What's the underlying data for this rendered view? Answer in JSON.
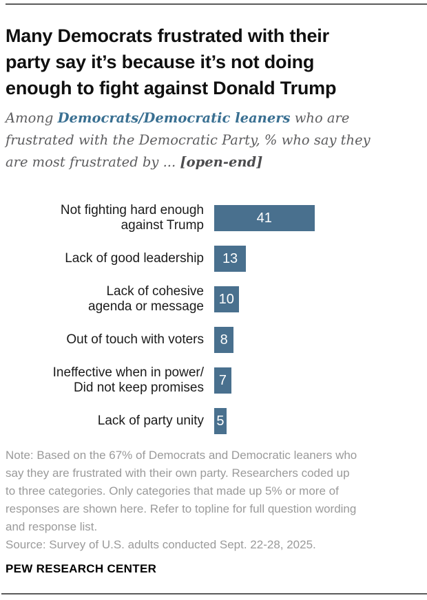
{
  "page": {
    "title_lines": [
      "Many Democrats frustrated with their",
      "party say it’s because it’s not doing",
      "enough to fight against Donald Trump"
    ]
  },
  "subtitle": {
    "lines": [
      {
        "segments": [
          {
            "text": "Among ",
            "style": "normal"
          },
          {
            "text": "Democrats/Democratic leaners",
            "style": "bold-blue"
          },
          {
            "text": " who are",
            "style": "normal"
          }
        ]
      },
      {
        "segments": [
          {
            "text": "frustrated with the Democratic Party, % who say they",
            "style": "normal"
          }
        ]
      },
      {
        "segments": [
          {
            "text": "are most frustrated by ... ",
            "style": "normal"
          },
          {
            "text": "[open-end]",
            "style": "bold"
          }
        ]
      }
    ]
  },
  "chart_data": {
    "type": "bar",
    "orientation": "horizontal",
    "categories": [
      "Not fighting hard enough against Trump",
      "Lack of good leadership",
      "Lack of cohesive agenda or message",
      "Out of touch with voters",
      "Ineffective when in power/ Did not keep promises",
      "Lack of party unity"
    ],
    "category_label_lines": [
      [
        "Not fighting hard enough",
        "against Trump"
      ],
      [
        "Lack of good leadership"
      ],
      [
        "Lack of cohesive",
        "agenda or message"
      ],
      [
        "Out of touch with voters"
      ],
      [
        "Ineffective when in power/",
        "Did not keep promises"
      ],
      [
        "Lack of party unity"
      ]
    ],
    "values": [
      41,
      13,
      10,
      8,
      7,
      5
    ],
    "value_labels": [
      "41",
      "13",
      "10",
      "8",
      "7",
      "5"
    ],
    "unit": "%",
    "xlim": [
      0,
      45
    ],
    "grid": false,
    "legend": false,
    "bar_color": "#49708E",
    "value_label_color": "#FFFFFF"
  },
  "note": {
    "lines": [
      "Note: Based on the 67% of Democrats and Democratic leaners who",
      "say they are frustrated with their own party. Researchers coded up",
      "to three categories. Only categories that made up 5% or more of",
      "responses are shown here. Refer to topline for full question wording",
      "and response list."
    ]
  },
  "footer": {
    "source": "Source: Survey of U.S. adults conducted Sept. 22-28, 2025.",
    "brand": "PEW RESEARCH CENTER"
  },
  "colors": {
    "bar": "#49708E",
    "subtitle_emphasis": "#3A7092",
    "subtitle_text": "#5D5D5F",
    "note_text": "#9A9A9A",
    "title_text": "#101010",
    "divider": "#5A5A5A"
  }
}
